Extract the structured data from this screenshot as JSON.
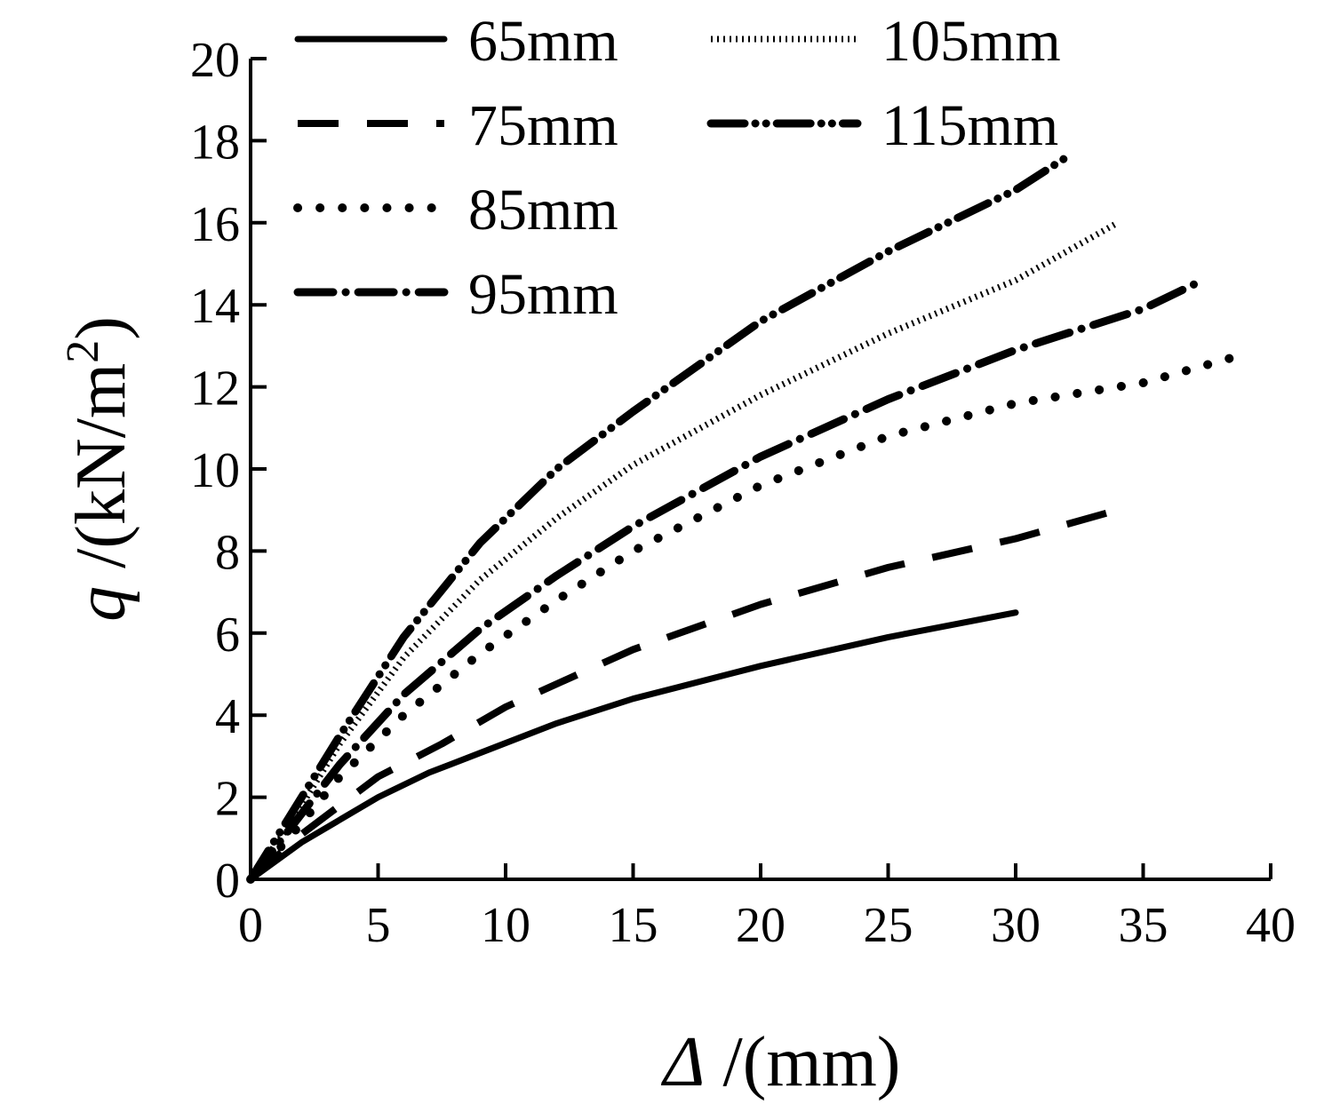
{
  "chart_data": {
    "type": "line",
    "xlabel_symbol": "Δ",
    "xlabel_unit": " /(mm)",
    "ylabel_symbol": "q",
    "ylabel_unit_prefix": " /(kN/m",
    "ylabel_unit_sup": "2",
    "ylabel_unit_suffix": ")",
    "xlim": [
      0,
      40
    ],
    "ylim": [
      0,
      20
    ],
    "x_ticks": [
      0,
      5,
      10,
      15,
      20,
      25,
      30,
      35,
      40
    ],
    "y_ticks": [
      0,
      2,
      4,
      6,
      8,
      10,
      12,
      14,
      16,
      18,
      20
    ],
    "x_tick_labels": [
      "0",
      "5",
      "10",
      "15",
      "20",
      "25",
      "30",
      "35",
      "40"
    ],
    "y_tick_labels": [
      "0",
      "2",
      "4",
      "6",
      "8",
      "10",
      "12",
      "14",
      "16",
      "18",
      "20"
    ],
    "grid": false,
    "legend_position": "top",
    "series": [
      {
        "name": "65mm",
        "style": "solid",
        "color": "#000000",
        "x": [
          0,
          2,
          5,
          7,
          9.5,
          12,
          15,
          20,
          25,
          30
        ],
        "y": [
          0,
          0.9,
          2.0,
          2.6,
          3.2,
          3.8,
          4.4,
          5.2,
          5.9,
          6.5
        ]
      },
      {
        "name": "75mm",
        "style": "dash",
        "color": "#000000",
        "x": [
          0,
          2,
          5,
          7.5,
          10,
          15,
          20,
          25,
          30,
          34
        ],
        "y": [
          0,
          1.1,
          2.5,
          3.3,
          4.2,
          5.6,
          6.7,
          7.6,
          8.3,
          9.0
        ]
      },
      {
        "name": "85mm",
        "style": "dot",
        "color": "#000000",
        "x": [
          0,
          1.5,
          3.5,
          6,
          9,
          12,
          15,
          20,
          25,
          30,
          35,
          39
        ],
        "y": [
          0,
          1.0,
          2.5,
          4.0,
          5.5,
          6.8,
          8.0,
          9.6,
          10.8,
          11.6,
          12.1,
          12.8
        ]
      },
      {
        "name": "95mm",
        "style": "dashdot",
        "color": "#000000",
        "x": [
          0,
          1.5,
          3.5,
          6,
          9,
          12,
          15,
          20,
          25,
          30,
          35,
          37
        ],
        "y": [
          0,
          1.2,
          2.8,
          4.5,
          6.1,
          7.4,
          8.6,
          10.3,
          11.7,
          12.9,
          13.9,
          14.5
        ]
      },
      {
        "name": "105mm",
        "style": "finedot",
        "color": "#000000",
        "x": [
          0,
          1.5,
          3.5,
          6,
          9,
          12,
          15,
          20,
          25,
          30,
          34
        ],
        "y": [
          0,
          1.3,
          3.3,
          5.4,
          7.3,
          8.8,
          10.1,
          11.8,
          13.3,
          14.6,
          16.0
        ]
      },
      {
        "name": "115mm",
        "style": "dashdotdot",
        "color": "#000000",
        "x": [
          0,
          1.5,
          3.5,
          6,
          9,
          12,
          15,
          20,
          25,
          30,
          32
        ],
        "y": [
          0,
          1.5,
          3.5,
          5.9,
          8.2,
          10.0,
          11.4,
          13.6,
          15.3,
          16.8,
          17.6
        ]
      }
    ]
  }
}
